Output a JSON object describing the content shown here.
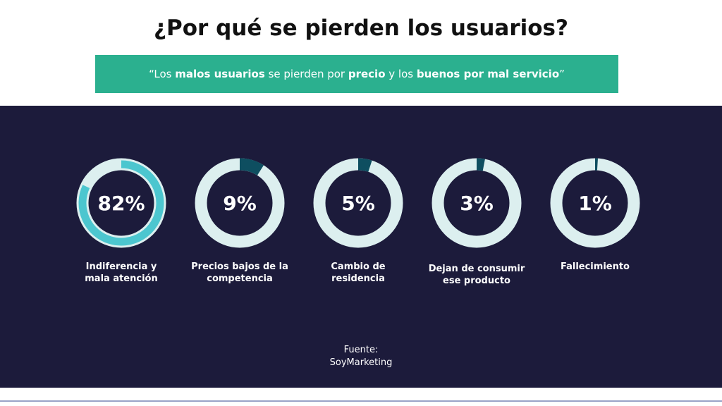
{
  "chart_data": {
    "type": "donut",
    "title": "¿Por qué se pierden los usuarios?",
    "subtitle_parts": [
      {
        "text": "“Los ",
        "bold": false
      },
      {
        "text": "malos usuarios",
        "bold": true
      },
      {
        "text": " se pierden por ",
        "bold": false
      },
      {
        "text": "precio",
        "bold": true
      },
      {
        "text": " y los ",
        "bold": false
      },
      {
        "text": "buenos por mal servicio",
        "bold": true
      },
      {
        "text": "”",
        "bold": false
      }
    ],
    "categories": [
      "Indiferencia y mala atención",
      "Precios bajos de la competencia",
      "Cambio de residencia",
      "Dejan de consumir ese producto",
      "Fallecimiento"
    ],
    "values": [
      82,
      9,
      5,
      3,
      1
    ],
    "value_labels": [
      "82%",
      "9%",
      "5%",
      "3%",
      "1%"
    ],
    "colors": [
      "#4cc6cf",
      "#0e4e60",
      "#0e4e60",
      "#0e4e60",
      "#0e4e60"
    ],
    "track_color": "#dcefef",
    "ylim": [
      0,
      100
    ],
    "source": "Fuente: SoyMarketing"
  }
}
